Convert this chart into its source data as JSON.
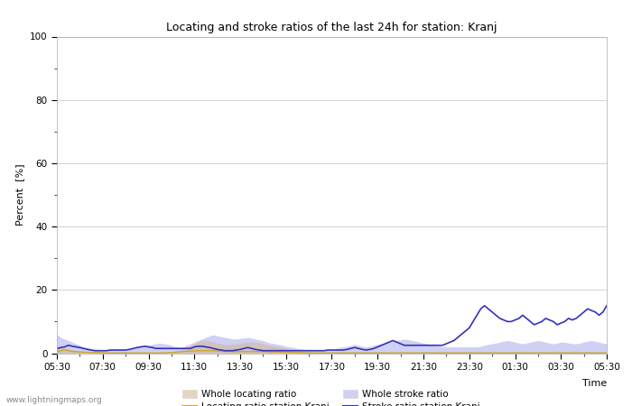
{
  "title": "Locating and stroke ratios of the last 24h for station: Kranj",
  "xlabel": "Time",
  "ylabel": "Percent  [%]",
  "ylim": [
    0,
    100
  ],
  "yticks": [
    0,
    20,
    40,
    60,
    80,
    100
  ],
  "background_color": "#ffffff",
  "plot_bg_color": "#ffffff",
  "grid_color": "#cccccc",
  "watermark": "www.lightningmaps.org",
  "x_labels": [
    "05:30",
    "07:30",
    "09:30",
    "11:30",
    "13:30",
    "15:30",
    "17:30",
    "19:30",
    "21:30",
    "23:30",
    "01:30",
    "03:30",
    "05:30"
  ],
  "whole_locating_color": "#d4b896",
  "whole_locating_alpha": 0.6,
  "whole_stroke_color": "#aaaaee",
  "whole_stroke_alpha": 0.55,
  "locating_line_color": "#c8a832",
  "stroke_line_color": "#3333bb",
  "legend_labels": [
    "Whole locating ratio",
    "Locating ratio station Kranj",
    "Whole stroke ratio",
    "Stroke ratio station Kranj"
  ],
  "n_points": 145,
  "whole_locating": [
    1.5,
    2.0,
    1.8,
    1.5,
    1.2,
    1.0,
    0.8,
    0.7,
    0.6,
    0.5,
    0.5,
    0.4,
    0.4,
    0.3,
    0.3,
    0.3,
    0.3,
    0.3,
    0.3,
    0.2,
    0.2,
    0.2,
    0.2,
    0.2,
    0.2,
    0.2,
    0.2,
    0.3,
    0.3,
    0.4,
    0.5,
    0.7,
    1.0,
    1.5,
    2.0,
    2.5,
    3.0,
    3.5,
    4.0,
    4.0,
    3.8,
    3.5,
    3.2,
    3.0,
    2.8,
    2.7,
    2.8,
    3.0,
    3.2,
    3.3,
    3.5,
    3.6,
    3.5,
    3.3,
    3.0,
    2.7,
    2.5,
    2.3,
    2.0,
    1.8,
    1.5,
    1.2,
    1.0,
    0.8,
    0.7,
    0.5,
    0.5,
    0.4,
    0.3,
    0.3,
    0.3,
    0.3,
    0.3,
    0.3,
    0.3,
    0.3,
    0.3,
    0.3,
    0.3,
    0.3,
    0.3,
    0.3,
    0.3,
    0.3,
    0.3,
    0.3,
    0.3,
    0.3,
    0.3,
    0.3,
    0.3,
    0.3,
    0.3,
    0.3,
    0.3,
    0.3,
    0.3,
    0.3,
    0.3,
    0.3,
    0.3,
    0.3,
    0.3,
    0.3,
    0.3,
    0.3,
    0.3,
    0.3,
    0.3,
    0.3,
    0.3,
    0.3,
    0.3,
    0.3,
    0.3,
    0.3,
    0.3,
    0.3,
    0.3,
    0.3,
    0.3,
    0.3,
    0.3,
    0.3,
    0.3,
    0.3,
    0.3,
    0.3,
    0.3,
    0.3,
    0.3,
    0.3,
    0.3,
    0.3,
    0.3,
    0.3,
    0.3,
    0.3,
    0.3,
    0.3,
    0.3,
    0.3,
    0.3,
    0.3,
    0.3
  ],
  "whole_stroke": [
    6.0,
    5.0,
    4.5,
    4.0,
    3.5,
    3.0,
    2.5,
    2.0,
    1.8,
    1.5,
    1.3,
    1.2,
    1.0,
    1.0,
    1.0,
    1.0,
    1.0,
    1.0,
    1.0,
    1.2,
    1.5,
    1.8,
    2.0,
    2.2,
    2.5,
    2.8,
    3.0,
    3.2,
    3.0,
    2.8,
    2.5,
    2.0,
    1.8,
    2.0,
    2.5,
    3.0,
    3.5,
    4.0,
    4.5,
    5.0,
    5.5,
    5.8,
    5.5,
    5.2,
    5.0,
    4.8,
    4.5,
    4.5,
    4.7,
    4.8,
    5.0,
    4.8,
    4.5,
    4.2,
    4.0,
    3.5,
    3.2,
    3.0,
    2.8,
    2.5,
    2.2,
    2.0,
    1.8,
    1.5,
    1.3,
    1.2,
    1.2,
    1.2,
    1.0,
    1.0,
    1.0,
    1.0,
    1.2,
    1.5,
    1.8,
    2.0,
    2.2,
    2.5,
    2.8,
    2.5,
    2.2,
    2.0,
    2.2,
    2.5,
    2.8,
    3.0,
    3.2,
    3.5,
    3.8,
    4.0,
    4.2,
    4.5,
    4.3,
    4.0,
    3.8,
    3.5,
    3.2,
    3.0,
    2.8,
    2.5,
    2.3,
    2.1,
    2.0,
    2.0,
    2.0,
    2.0,
    2.0,
    2.0,
    2.0,
    2.0,
    2.0,
    2.2,
    2.5,
    2.8,
    3.0,
    3.2,
    3.5,
    3.8,
    4.0,
    3.8,
    3.5,
    3.2,
    3.0,
    3.2,
    3.5,
    3.8,
    4.0,
    3.8,
    3.5,
    3.2,
    3.0,
    3.2,
    3.5,
    3.5,
    3.2,
    3.0,
    3.0,
    3.2,
    3.5,
    3.8,
    4.0,
    3.8,
    3.5,
    3.2,
    3.0
  ],
  "locating_ratio": [
    0.5,
    0.8,
    1.0,
    0.8,
    0.6,
    0.5,
    0.4,
    0.3,
    0.3,
    0.2,
    0.2,
    0.2,
    0.2,
    0.1,
    0.1,
    0.1,
    0.1,
    0.1,
    0.1,
    0.1,
    0.1,
    0.1,
    0.1,
    0.1,
    0.1,
    0.1,
    0.1,
    0.1,
    0.1,
    0.2,
    0.2,
    0.3,
    0.4,
    0.5,
    0.6,
    0.7,
    0.8,
    0.8,
    0.8,
    0.8,
    0.8,
    0.8,
    0.7,
    0.7,
    0.6,
    0.6,
    0.5,
    0.5,
    0.5,
    0.5,
    0.5,
    0.5,
    0.5,
    0.5,
    0.5,
    0.5,
    0.4,
    0.4,
    0.4,
    0.3,
    0.3,
    0.3,
    0.2,
    0.2,
    0.2,
    0.1,
    0.1,
    0.1,
    0.1,
    0.1,
    0.1,
    0.1,
    0.1,
    0.1,
    0.1,
    0.1,
    0.1,
    0.1,
    0.1,
    0.1,
    0.1,
    0.1,
    0.1,
    0.1,
    0.1,
    0.1,
    0.1,
    0.1,
    0.1,
    0.1,
    0.1,
    0.1,
    0.1,
    0.1,
    0.1,
    0.1,
    0.1,
    0.1,
    0.1,
    0.1,
    0.1,
    0.1,
    0.1,
    0.1,
    0.1,
    0.1,
    0.1,
    0.1,
    0.1,
    0.1,
    0.1,
    0.1,
    0.1,
    0.1,
    0.1,
    0.1,
    0.1,
    0.1,
    0.1,
    0.1,
    0.1,
    0.1,
    0.1,
    0.1,
    0.1,
    0.1,
    0.1,
    0.1,
    0.1,
    0.1,
    0.1,
    0.1,
    0.1,
    0.1,
    0.1,
    0.1,
    0.1,
    0.1,
    0.1,
    0.1,
    0.1,
    0.1,
    0.1,
    0.1,
    0.1
  ],
  "stroke_ratio": [
    1.5,
    1.8,
    2.0,
    2.5,
    2.2,
    2.0,
    1.8,
    1.5,
    1.2,
    1.0,
    0.8,
    0.8,
    0.8,
    0.8,
    1.0,
    1.0,
    1.0,
    1.0,
    1.0,
    1.2,
    1.5,
    1.8,
    2.0,
    2.2,
    2.0,
    1.8,
    1.5,
    1.5,
    1.5,
    1.5,
    1.5,
    1.5,
    1.5,
    1.5,
    1.5,
    1.5,
    2.0,
    2.2,
    2.2,
    2.0,
    1.8,
    1.5,
    1.2,
    1.0,
    0.8,
    0.8,
    0.8,
    1.0,
    1.2,
    1.5,
    1.8,
    1.5,
    1.2,
    1.0,
    0.8,
    0.8,
    0.8,
    0.8,
    0.8,
    0.8,
    0.8,
    0.8,
    0.8,
    0.8,
    0.8,
    0.8,
    0.8,
    0.8,
    0.8,
    0.8,
    0.8,
    1.0,
    1.0,
    1.0,
    1.0,
    1.0,
    1.2,
    1.5,
    1.8,
    1.5,
    1.2,
    1.0,
    1.2,
    1.5,
    2.0,
    2.5,
    3.0,
    3.5,
    4.0,
    3.5,
    3.0,
    2.5,
    2.5,
    2.5,
    2.5,
    2.5,
    2.5,
    2.5,
    2.5,
    2.5,
    2.5,
    2.5,
    3.0,
    3.5,
    4.0,
    5.0,
    6.0,
    7.0,
    8.0,
    10.0,
    12.0,
    14.0,
    15.0,
    14.0,
    13.0,
    12.0,
    11.0,
    10.5,
    10.0,
    10.0,
    10.5,
    11.0,
    12.0,
    11.0,
    10.0,
    9.0,
    9.5,
    10.0,
    11.0,
    10.5,
    10.0,
    9.0,
    9.5,
    10.0,
    11.0,
    10.5,
    11.0,
    12.0,
    13.0,
    14.0,
    13.5,
    13.0,
    12.0,
    13.0,
    15.0
  ]
}
